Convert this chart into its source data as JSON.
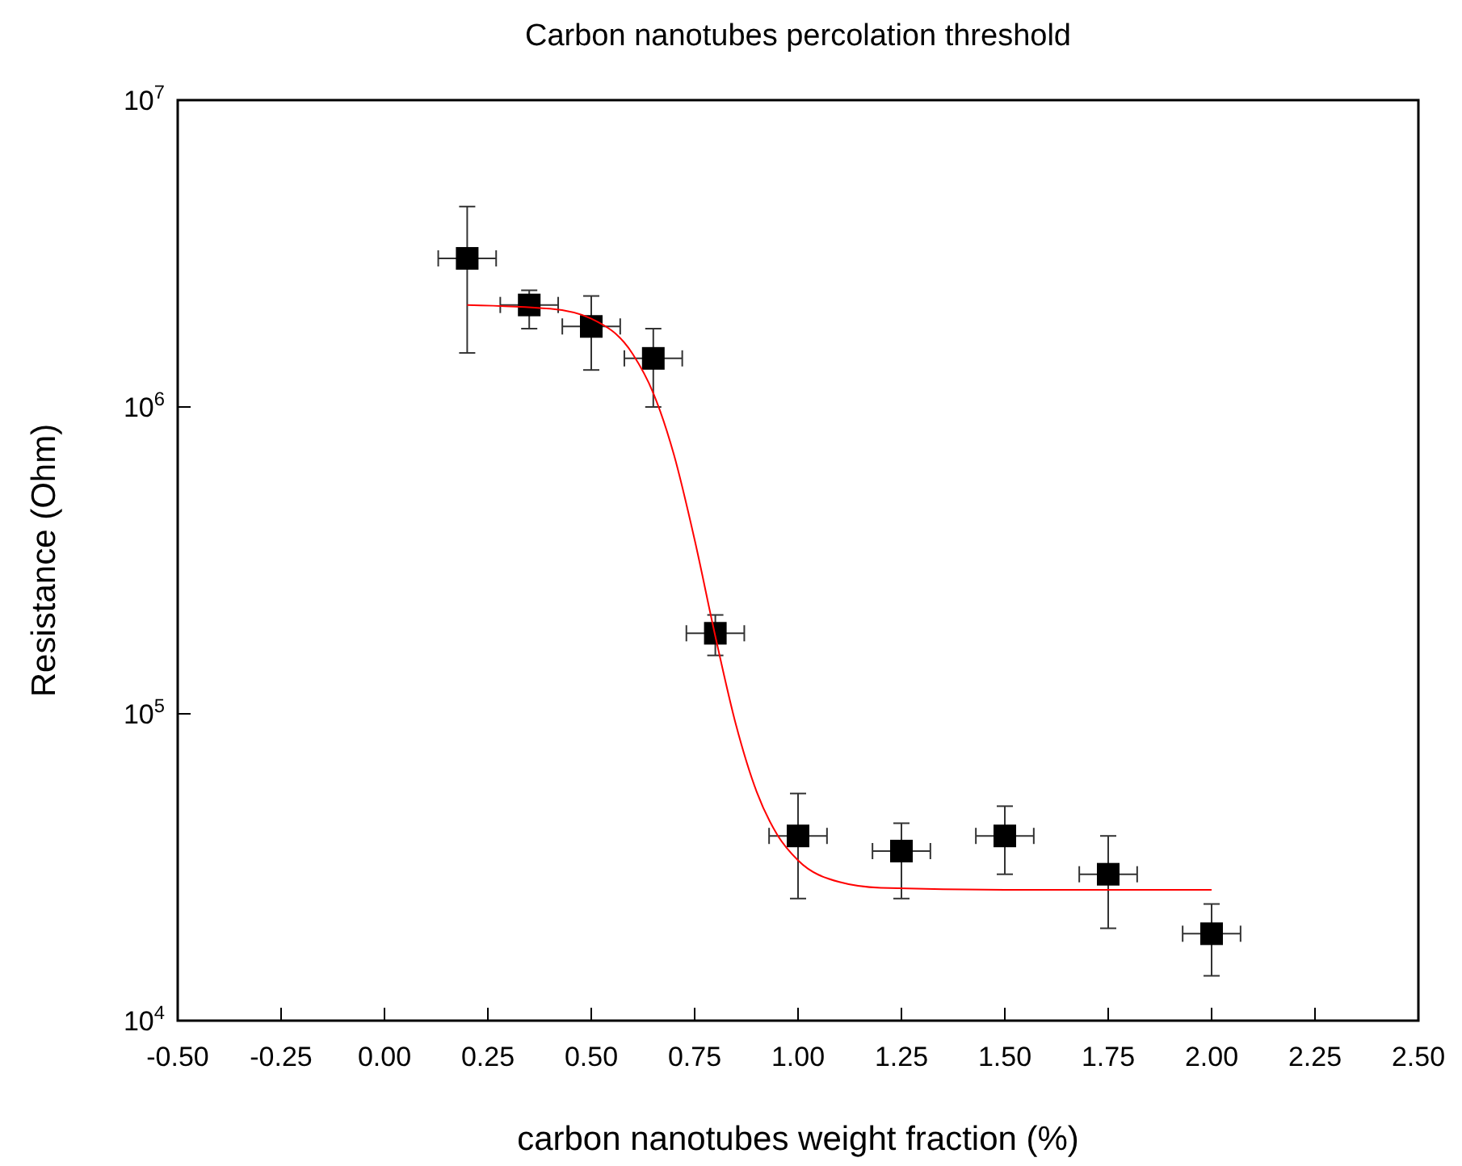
{
  "chart_data": {
    "type": "scatter",
    "title": "Carbon nanotubes percolation threshold",
    "xlabel": "carbon nanotubes weight fraction (%)",
    "ylabel": "Resistance (Ohm)",
    "log": "y",
    "grid": false,
    "xlim": [
      -0.5,
      2.5
    ],
    "ylim": [
      10000,
      10000000
    ],
    "xticks": [
      {
        "value": -0.5,
        "label": "-0.50"
      },
      {
        "value": -0.25,
        "label": "-0.25"
      },
      {
        "value": 0,
        "label": "0.00"
      },
      {
        "value": 0.25,
        "label": "0.25"
      },
      {
        "value": 0.5,
        "label": "0.50"
      },
      {
        "value": 0.75,
        "label": "0.75"
      },
      {
        "value": 1,
        "label": "1.00"
      },
      {
        "value": 1.25,
        "label": "1.25"
      },
      {
        "value": 1.5,
        "label": "1.50"
      },
      {
        "value": 1.75,
        "label": "1.75"
      },
      {
        "value": 2,
        "label": "2.00"
      },
      {
        "value": 2.25,
        "label": "2.25"
      },
      {
        "value": 2.5,
        "label": "2.50"
      }
    ],
    "yticks": [
      {
        "value": 10000,
        "label": "10$^{4}$"
      },
      {
        "value": 100000,
        "label": "10$^{5}$"
      },
      {
        "value": 1000000,
        "label": "10$^{6}$"
      },
      {
        "value": 10000000,
        "label": "10$^{7}$"
      }
    ],
    "series": [
      {
        "color": "#000000",
        "marker": "square",
        "x": [
          0.2,
          0.35,
          0.5,
          0.65,
          0.8,
          1.0,
          1.25,
          1.5,
          1.75,
          2.0
        ],
        "values": [
          3050000,
          2150000,
          1830000,
          1440000,
          183000,
          40000,
          35700,
          40000,
          30000,
          19200
        ],
        "errors": [
          [
            1500000,
            4500000
          ],
          [
            1800000,
            2400000
          ],
          [
            1320000,
            2300000
          ],
          [
            1000000,
            1800000
          ],
          [
            155000,
            210000
          ],
          [
            25000,
            55000
          ],
          [
            25000,
            44000
          ],
          [
            30000,
            50000
          ],
          [
            20000,
            40000
          ],
          [
            14000,
            24000
          ]
        ],
        "xerrors": [
          0.07,
          0.07,
          0.07,
          0.07,
          0.07,
          0.07,
          0.07,
          0.07,
          0.07,
          0.07
        ]
      },
      {
        "type": "line",
        "color": "#ff0000",
        "line_style": "solid",
        "x": [
          0.2,
          0.4,
          0.5,
          0.6,
          0.65,
          0.7,
          0.75,
          0.8,
          0.85,
          0.9,
          0.95,
          1.0,
          1.1,
          1.2,
          1.5,
          2.0
        ],
        "values": [
          2150000,
          2090000,
          1940000,
          1490000,
          1110000,
          698000,
          369000,
          179000,
          92000,
          55700,
          40300,
          33300,
          28300,
          27100,
          26700,
          26700
        ]
      }
    ]
  }
}
